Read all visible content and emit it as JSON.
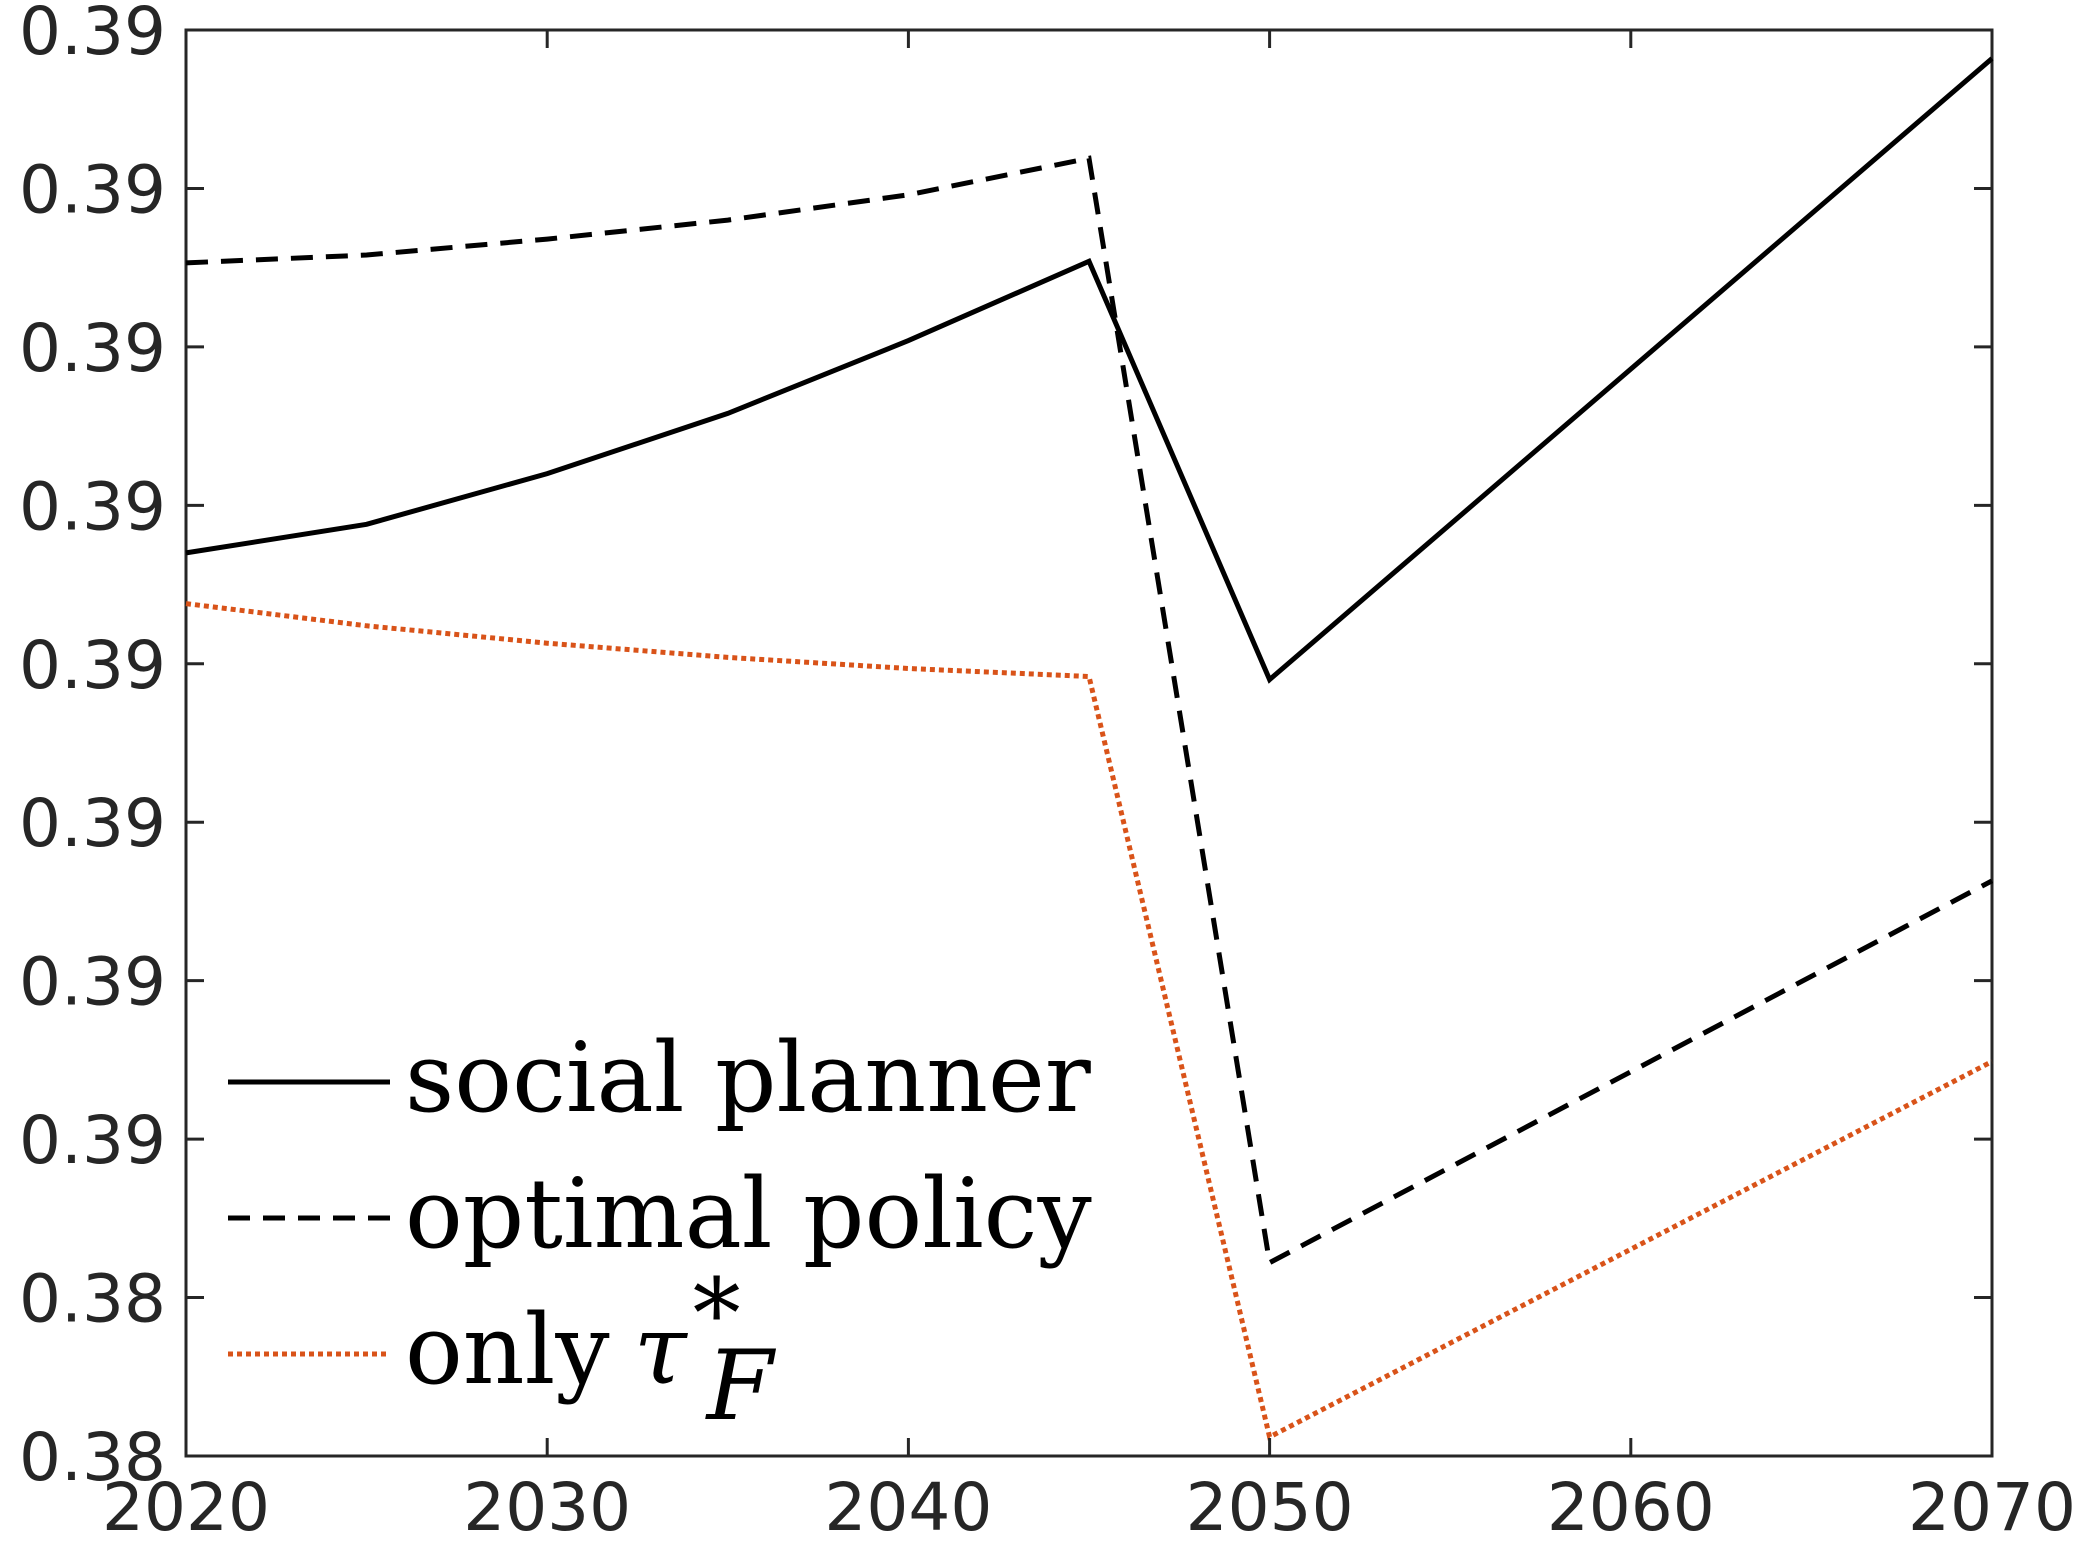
{
  "chart_data": {
    "type": "line",
    "x_ticks": [
      2020,
      2030,
      2040,
      2050,
      2060,
      2070
    ],
    "xlim": [
      2020,
      2070
    ],
    "ylim": [
      0,
      9
    ],
    "y_tick_positions": [
      0,
      1,
      2,
      3,
      4,
      5,
      6,
      7,
      8,
      9
    ],
    "y_tick_labels": [
      "0.38",
      "0.38",
      "0.39",
      "0.39",
      "0.39",
      "0.39",
      "0.39",
      "0.39",
      "0.39",
      "0.39"
    ],
    "x": [
      2020,
      2025,
      2030,
      2035,
      2040,
      2045,
      2050,
      2070
    ],
    "series": [
      {
        "name": "social planner",
        "style": "solid",
        "color": "#000000",
        "values": [
          5.7,
          5.88,
          6.2,
          6.58,
          7.04,
          7.54,
          4.9,
          8.82
        ]
      },
      {
        "name": "optimal policy",
        "style": "dashed",
        "color": "#000000",
        "values": [
          7.53,
          7.58,
          7.68,
          7.8,
          7.96,
          8.19,
          1.22,
          3.63
        ]
      },
      {
        "name": "only",
        "name_symbol": "τ",
        "name_subscript": "F",
        "name_superscript": "*",
        "style": "dotted",
        "color": "#D95319",
        "values": [
          5.38,
          5.24,
          5.13,
          5.04,
          4.97,
          4.92,
          0.12,
          2.49
        ]
      }
    ],
    "legend_position": "bottom-left",
    "grid": false
  }
}
